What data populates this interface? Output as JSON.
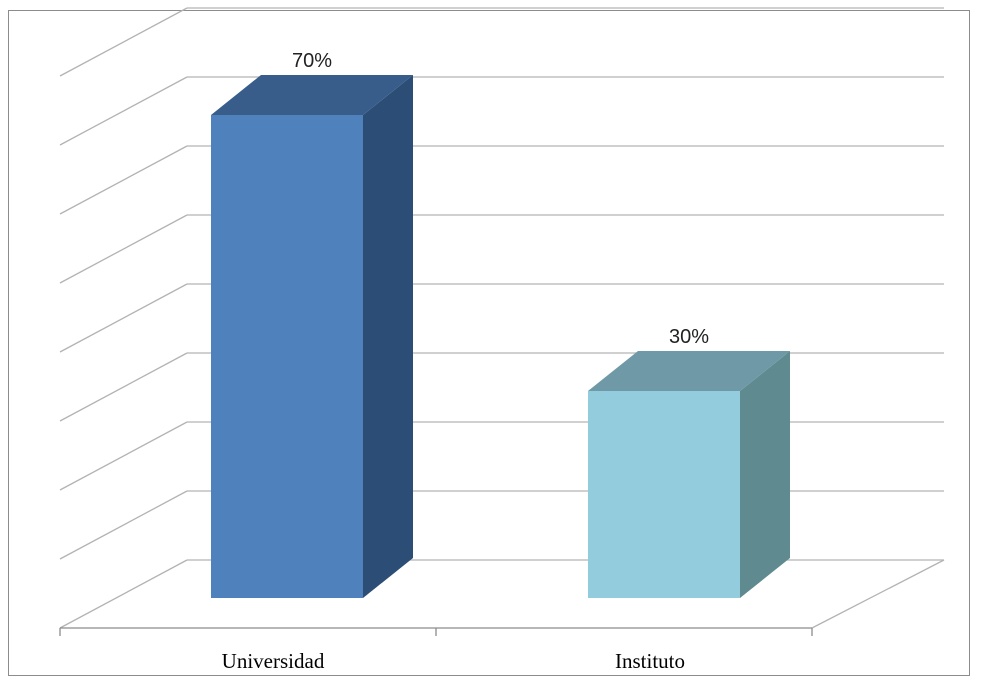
{
  "chart_data": {
    "type": "bar",
    "style": "3d-column",
    "categories": [
      "Universidad",
      "Instituto"
    ],
    "values": [
      70,
      30
    ],
    "value_labels": [
      "70%",
      "30%"
    ],
    "ylim": [
      0,
      70
    ],
    "grid": true,
    "legend": "none",
    "colors": {
      "front": [
        "#4f81bd",
        "#93cddd"
      ],
      "side": [
        "#2c4d75",
        "#5f8a8f"
      ],
      "top": [
        "#385d8a",
        "#6f99a6"
      ],
      "grid": "#b3b3b3",
      "frame": "#8c8c8c"
    }
  }
}
